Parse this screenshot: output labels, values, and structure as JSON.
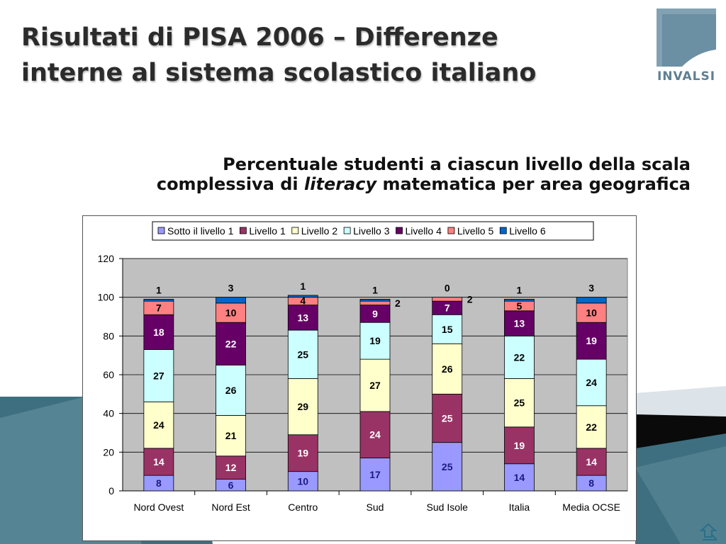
{
  "slide": {
    "title_line1": "Risultati di PISA 2006 – Differenze",
    "title_line2": "interne al sistema scolastico italiano",
    "logo_text": "INVALSI",
    "subtitle_line1": "Percentuale studenti a ciascun livello della scala",
    "subtitle_line2_pre": "complessiva di ",
    "subtitle_line2_em": "literacy",
    "subtitle_line2_post": " matematica per area geografica"
  },
  "colors": {
    "accent_teal": "#2f5f70",
    "plot_bg": "#c0c0c0"
  },
  "chart_data": {
    "type": "bar",
    "stacked": true,
    "categories": [
      "Nord Ovest",
      "Nord Est",
      "Centro",
      "Sud",
      "Sud Isole",
      "Italia",
      "Media OCSE"
    ],
    "ylim": [
      0,
      120
    ],
    "yticks": [
      0,
      20,
      40,
      60,
      80,
      100,
      120
    ],
    "grid": true,
    "legend_position": "top",
    "series": [
      {
        "name": "Sotto il livello 1",
        "color": "#9999ff",
        "label_color": "#1a1a80",
        "values": [
          8,
          6,
          10,
          17,
          25,
          14,
          8
        ]
      },
      {
        "name": "Livello 1",
        "color": "#993366",
        "label_color": "#ffffff",
        "values": [
          14,
          12,
          19,
          24,
          25,
          19,
          14
        ]
      },
      {
        "name": "Livello 2",
        "color": "#ffffcc",
        "label_color": "#000000",
        "values": [
          24,
          21,
          29,
          27,
          26,
          25,
          22
        ]
      },
      {
        "name": "Livello 3",
        "color": "#ccffff",
        "label_color": "#000000",
        "values": [
          27,
          26,
          25,
          19,
          15,
          22,
          24
        ]
      },
      {
        "name": "Livello 4",
        "color": "#660066",
        "label_color": "#ffffff",
        "values": [
          18,
          22,
          13,
          9,
          7,
          13,
          19
        ]
      },
      {
        "name": "Livello 5",
        "color": "#ff8080",
        "label_color": "#000000",
        "values": [
          7,
          10,
          4,
          2,
          2,
          5,
          10
        ]
      },
      {
        "name": "Livello 6",
        "color": "#0066cc",
        "label_color": "#000000",
        "values": [
          1,
          3,
          1,
          1,
          0,
          1,
          3
        ]
      }
    ]
  }
}
